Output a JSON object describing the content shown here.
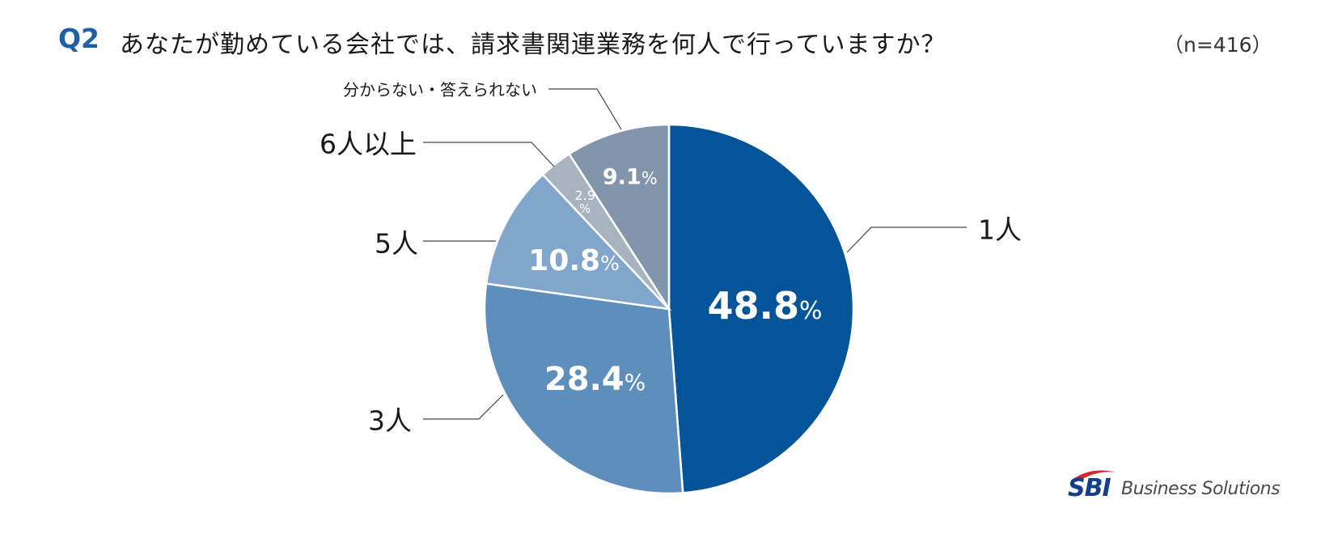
{
  "question": {
    "label": "Q2",
    "text": "あなたが勤めている会社では、請求書関連業務を何人で行っていますか？",
    "sample": "（n=416）"
  },
  "chart_data": {
    "type": "pie",
    "categories": [
      "1人",
      "3人",
      "5人",
      "6人以上",
      "分からない・答えられない"
    ],
    "values": [
      48.8,
      28.4,
      10.8,
      2.9,
      9.1
    ],
    "value_labels": [
      "48.8",
      "28.4",
      "10.8",
      "2.9",
      "9.1"
    ],
    "unit": "%",
    "colors": [
      "#04549a",
      "#5e8fbc",
      "#80a7cb",
      "#a7b3bf",
      "#8296ab"
    ],
    "title": "あなたが勤めている会社では、請求書関連業務を何人で行っていますか？"
  },
  "logo": {
    "brand": "SBI",
    "text": "Business Solutions"
  }
}
